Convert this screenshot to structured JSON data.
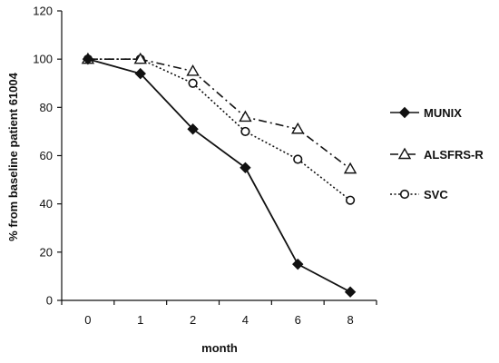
{
  "chart_data": {
    "type": "line",
    "categories": [
      "0",
      "1",
      "2",
      "4",
      "6",
      "8"
    ],
    "xlabel": "month",
    "ylabel": "%  from baseline patient 61004",
    "ylim": [
      0,
      120
    ],
    "yticks": [
      0,
      20,
      40,
      60,
      80,
      100,
      120
    ],
    "grid": false,
    "legend": "right",
    "series": [
      {
        "name": "MUNIX",
        "values": [
          100,
          94,
          71,
          55,
          15,
          3.5
        ],
        "marker": "diamond",
        "line_style": "solid",
        "color": "#111111"
      },
      {
        "name": "ALSFRS-R",
        "values": [
          100,
          100,
          95,
          76,
          71,
          54.5
        ],
        "marker": "triangle",
        "line_style": "dash-dot",
        "color": "#111111"
      },
      {
        "name": "SVC",
        "values": [
          100,
          100,
          90,
          70,
          58.5,
          41.5
        ],
        "marker": "circle",
        "line_style": "dotted",
        "color": "#111111"
      }
    ]
  }
}
